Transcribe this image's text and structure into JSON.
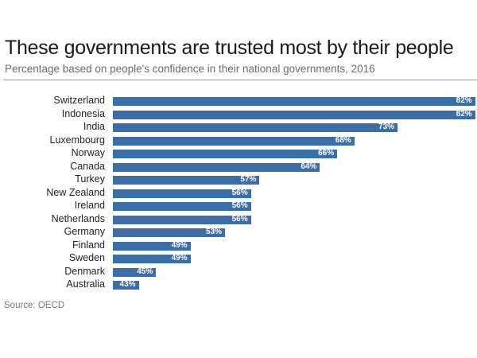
{
  "header": {
    "title": "These governments are trusted most by their people",
    "subtitle": "Percentage based on people's confidence in their national governments, 2016"
  },
  "footer": {
    "source": "Source: OECD"
  },
  "colors": {
    "bar": "#3a6ea8",
    "label_text": "#ffffff"
  },
  "rows": [
    {
      "label": "Switzerland",
      "value": 82,
      "text": "82%"
    },
    {
      "label": "Indonesia",
      "value": 82,
      "text": "82%"
    },
    {
      "label": "India",
      "value": 73,
      "text": "73%"
    },
    {
      "label": "Luxembourg",
      "value": 68,
      "text": "68%"
    },
    {
      "label": "Norway",
      "value": 66,
      "text": "66%"
    },
    {
      "label": "Canada",
      "value": 64,
      "text": "64%"
    },
    {
      "label": "Turkey",
      "value": 57,
      "text": "57%"
    },
    {
      "label": "New Zealand",
      "value": 56,
      "text": "56%"
    },
    {
      "label": "Ireland",
      "value": 56,
      "text": "56%"
    },
    {
      "label": "Netherlands",
      "value": 56,
      "text": "56%"
    },
    {
      "label": "Germany",
      "value": 53,
      "text": "53%"
    },
    {
      "label": "Finland",
      "value": 49,
      "text": "49%"
    },
    {
      "label": "Sweden",
      "value": 49,
      "text": "49%"
    },
    {
      "label": "Denmark",
      "value": 45,
      "text": "45%"
    },
    {
      "label": "Australia",
      "value": 43,
      "text": "43%"
    }
  ],
  "chart_data": {
    "type": "bar",
    "orientation": "horizontal",
    "title": "These governments are trusted most by their people",
    "subtitle": "Percentage based on people's confidence in their national governments, 2016",
    "categories": [
      "Switzerland",
      "Indonesia",
      "India",
      "Luxembourg",
      "Norway",
      "Canada",
      "Turkey",
      "New Zealand",
      "Ireland",
      "Netherlands",
      "Germany",
      "Finland",
      "Sweden",
      "Denmark",
      "Australia"
    ],
    "values": [
      82,
      82,
      73,
      68,
      66,
      64,
      57,
      56,
      56,
      56,
      53,
      49,
      49,
      45,
      43
    ],
    "xlabel": "",
    "ylabel": "",
    "unit": "%",
    "source": "Source: OECD",
    "grid": false,
    "legend": null
  }
}
